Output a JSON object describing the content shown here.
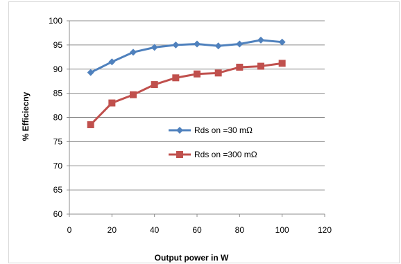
{
  "chart_data": {
    "type": "line",
    "title": "",
    "xlabel": "Output power in W",
    "ylabel": "% Efficiecny",
    "xlim": [
      0,
      120
    ],
    "ylim": [
      60,
      100
    ],
    "x_ticks": [
      0,
      20,
      40,
      60,
      80,
      100,
      120
    ],
    "y_ticks": [
      60,
      65,
      70,
      75,
      80,
      85,
      90,
      95,
      100
    ],
    "grid": "horizontal",
    "legend_position": "center-right",
    "series": [
      {
        "name": "Rds on  =30 mΩ",
        "color": "#4f81bd",
        "marker": "diamond",
        "x": [
          10,
          20,
          30,
          40,
          50,
          60,
          70,
          80,
          90,
          100
        ],
        "y": [
          89.3,
          91.5,
          93.5,
          94.5,
          95.0,
          95.2,
          94.8,
          95.2,
          96.0,
          95.6
        ]
      },
      {
        "name": "Rds on  =300 mΩ",
        "color": "#c0504d",
        "marker": "square",
        "x": [
          10,
          20,
          30,
          40,
          50,
          60,
          70,
          80,
          90,
          100
        ],
        "y": [
          78.5,
          83.0,
          84.7,
          86.8,
          88.2,
          89.0,
          89.2,
          90.4,
          90.6,
          91.2
        ]
      }
    ]
  }
}
